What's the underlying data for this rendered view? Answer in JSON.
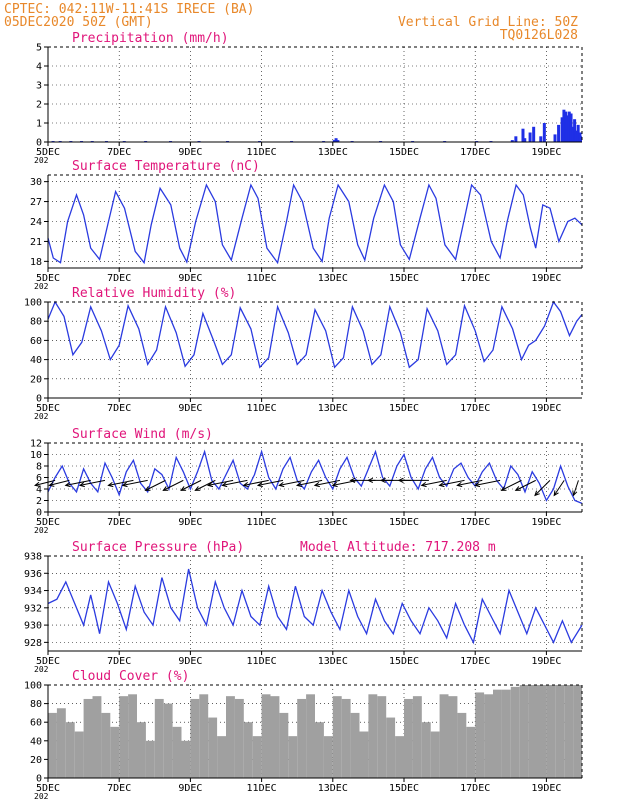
{
  "header": {
    "line1": "CPTEC:  042:11W-11:41S  IRECE (BA)",
    "line2": "05DEC2020 50Z (GMT)",
    "grid_note": "Vertical Grid Line: 50Z",
    "code": "TQ0126L028"
  },
  "x_axis": {
    "range_days": [
      0,
      15
    ],
    "ticks": [
      {
        "day": 0,
        "label": "5DEC"
      },
      {
        "day": 2,
        "label": "7DEC"
      },
      {
        "day": 4,
        "label": "9DEC"
      },
      {
        "day": 6,
        "label": "11DEC"
      },
      {
        "day": 8,
        "label": "13DEC"
      },
      {
        "day": 10,
        "label": "15DEC"
      },
      {
        "day": 12,
        "label": "17DEC"
      },
      {
        "day": 14,
        "label": "19DEC"
      }
    ],
    "year_stub": "202"
  },
  "chart_data": [
    {
      "type": "bar",
      "title": "Precipitation (mm/h)",
      "ylim": [
        0,
        5
      ],
      "yticks": [
        0,
        1,
        2,
        3,
        4,
        5
      ],
      "color": "#1f2fe6",
      "x_days": [
        0.1,
        0.3,
        0.6,
        0.9,
        1.2,
        1.6,
        2.1,
        2.7,
        3.4,
        4.2,
        5.0,
        5.9,
        6.8,
        7.7,
        8.0,
        8.05,
        8.1,
        8.5,
        9.3,
        10.2,
        11.1,
        12.0,
        12.4,
        13.0,
        13.1,
        13.3,
        13.35,
        13.5,
        13.6,
        13.8,
        13.9,
        14.2,
        14.3,
        14.4,
        14.45,
        14.5,
        14.55,
        14.6,
        14.65,
        14.7,
        14.75,
        14.8,
        14.85,
        14.9,
        14.95
      ],
      "values": [
        0.05,
        0.05,
        0.05,
        0.05,
        0.05,
        0.05,
        0.05,
        0.05,
        0.05,
        0.05,
        0.05,
        0.05,
        0.05,
        0.05,
        0.1,
        0.2,
        0.1,
        0.05,
        0.05,
        0.05,
        0.05,
        0.05,
        0.05,
        0.1,
        0.3,
        0.7,
        0.2,
        0.5,
        0.8,
        0.3,
        1.0,
        0.4,
        0.9,
        1.3,
        1.7,
        1.6,
        1.4,
        1.6,
        1.5,
        0.8,
        1.2,
        0.6,
        0.9,
        0.5,
        0.3
      ]
    },
    {
      "type": "line",
      "title": "Surface Temperature (nC)",
      "ylim": [
        17,
        31
      ],
      "yticks": [
        18,
        21,
        24,
        27,
        30
      ],
      "color": "#2b3be0",
      "x_days": [
        0.0,
        0.15,
        0.35,
        0.55,
        0.8,
        1.0,
        1.2,
        1.45,
        1.7,
        1.9,
        2.15,
        2.45,
        2.7,
        2.9,
        3.15,
        3.45,
        3.7,
        3.9,
        4.15,
        4.45,
        4.7,
        4.9,
        5.15,
        5.45,
        5.7,
        5.9,
        6.15,
        6.45,
        6.7,
        6.9,
        7.15,
        7.45,
        7.7,
        7.9,
        8.15,
        8.45,
        8.7,
        8.9,
        9.15,
        9.45,
        9.7,
        9.9,
        10.15,
        10.45,
        10.7,
        10.9,
        11.15,
        11.45,
        11.7,
        11.9,
        12.15,
        12.45,
        12.7,
        12.9,
        13.15,
        13.35,
        13.55,
        13.7,
        13.9,
        14.1,
        14.35,
        14.6,
        14.8,
        15.0
      ],
      "values": [
        21.5,
        18.5,
        17.8,
        24.0,
        28.0,
        25.0,
        20.0,
        18.3,
        24.0,
        28.5,
        26.0,
        19.5,
        17.8,
        23.5,
        29.0,
        26.5,
        20.0,
        17.9,
        24.0,
        29.5,
        27.0,
        20.5,
        18.2,
        24.5,
        29.5,
        27.5,
        20.0,
        17.8,
        24.0,
        29.5,
        27.0,
        20.0,
        18.0,
        24.5,
        29.5,
        27.0,
        20.5,
        18.2,
        24.5,
        29.5,
        27.0,
        20.5,
        18.3,
        24.5,
        29.5,
        27.5,
        20.5,
        18.3,
        24.5,
        29.5,
        28.0,
        21.0,
        18.5,
        24.0,
        29.5,
        28.0,
        23.0,
        20.0,
        26.5,
        26.0,
        21.0,
        24.0,
        24.5,
        23.5
      ]
    },
    {
      "type": "line",
      "title": "Relative Humidity (%)",
      "ylim": [
        0,
        100
      ],
      "yticks": [
        0,
        20,
        40,
        60,
        80,
        100
      ],
      "color": "#2b3be0",
      "x_days": [
        0.0,
        0.2,
        0.45,
        0.7,
        0.95,
        1.2,
        1.5,
        1.75,
        2.0,
        2.25,
        2.55,
        2.8,
        3.05,
        3.3,
        3.6,
        3.85,
        4.1,
        4.35,
        4.65,
        4.9,
        5.15,
        5.4,
        5.7,
        5.95,
        6.2,
        6.45,
        6.75,
        7.0,
        7.25,
        7.5,
        7.8,
        8.05,
        8.3,
        8.55,
        8.85,
        9.1,
        9.35,
        9.6,
        9.9,
        10.15,
        10.4,
        10.65,
        10.95,
        11.2,
        11.45,
        11.7,
        12.0,
        12.25,
        12.5,
        12.75,
        13.05,
        13.3,
        13.5,
        13.7,
        13.95,
        14.2,
        14.4,
        14.65,
        14.85,
        15.0
      ],
      "values": [
        82,
        100,
        85,
        45,
        58,
        95,
        70,
        40,
        55,
        96,
        72,
        35,
        50,
        95,
        68,
        33,
        45,
        88,
        60,
        35,
        45,
        94,
        72,
        32,
        42,
        95,
        68,
        35,
        45,
        92,
        70,
        32,
        42,
        95,
        70,
        35,
        45,
        95,
        68,
        32,
        40,
        93,
        70,
        35,
        45,
        96,
        70,
        38,
        50,
        95,
        72,
        40,
        55,
        60,
        75,
        100,
        90,
        65,
        80,
        87
      ]
    },
    {
      "type": "line",
      "title": "Surface Wind (m/s)",
      "ylim": [
        0,
        12
      ],
      "yticks": [
        0,
        2,
        4,
        6,
        8,
        10,
        12
      ],
      "color": "#2b3be0",
      "x_days": [
        0.0,
        0.2,
        0.4,
        0.6,
        0.8,
        1.0,
        1.2,
        1.4,
        1.6,
        1.8,
        2.0,
        2.2,
        2.4,
        2.6,
        2.8,
        3.0,
        3.2,
        3.4,
        3.6,
        3.8,
        4.0,
        4.2,
        4.4,
        4.6,
        4.8,
        5.0,
        5.2,
        5.4,
        5.6,
        5.8,
        6.0,
        6.2,
        6.4,
        6.6,
        6.8,
        7.0,
        7.2,
        7.4,
        7.6,
        7.8,
        8.0,
        8.2,
        8.4,
        8.6,
        8.8,
        9.0,
        9.2,
        9.4,
        9.6,
        9.8,
        10.0,
        10.2,
        10.4,
        10.6,
        10.8,
        11.0,
        11.2,
        11.4,
        11.6,
        11.8,
        12.0,
        12.2,
        12.4,
        12.6,
        12.8,
        13.0,
        13.2,
        13.4,
        13.6,
        13.8,
        14.0,
        14.2,
        14.4,
        14.6,
        14.8,
        15.0
      ],
      "values": [
        3.5,
        6.0,
        8.0,
        5.0,
        3.5,
        7.5,
        5.0,
        3.5,
        8.5,
        6.0,
        3.0,
        7.0,
        9.0,
        5.0,
        3.5,
        7.5,
        6.5,
        4.0,
        9.5,
        7.0,
        4.0,
        7.0,
        10.5,
        5.5,
        4.0,
        6.5,
        9.0,
        5.0,
        4.0,
        6.5,
        10.5,
        6.0,
        4.0,
        7.5,
        9.5,
        5.5,
        4.0,
        7.0,
        9.0,
        6.0,
        4.0,
        7.5,
        9.5,
        6.0,
        4.5,
        7.5,
        10.5,
        6.0,
        4.5,
        8.0,
        10.0,
        6.0,
        4.0,
        7.5,
        9.5,
        6.0,
        4.5,
        7.5,
        8.5,
        6.0,
        4.5,
        7.0,
        8.5,
        5.5,
        4.0,
        8.0,
        6.5,
        3.5,
        7.0,
        5.0,
        2.0,
        4.0,
        8.0,
        4.5,
        2.0,
        1.5
      ],
      "arrows": {
        "color": "#000000",
        "x_days": [
          0.2,
          0.6,
          1.2,
          1.6,
          2.4,
          2.8,
          3.3,
          3.8,
          4.3,
          4.7,
          5.2,
          5.6,
          6.2,
          6.6,
          7.2,
          7.7,
          8.2,
          8.7,
          9.2,
          9.7,
          10.2,
          10.7,
          11.2,
          11.7,
          12.2,
          12.7,
          13.3,
          13.7,
          14.1,
          14.5,
          14.9
        ],
        "u": [
          -4,
          -4,
          -5,
          -5,
          -5,
          -5,
          -4,
          -4,
          -4,
          -4,
          -5,
          -5,
          -5,
          -5,
          -5,
          -5,
          -5,
          -5,
          -5,
          -5,
          -6,
          -6,
          -5,
          -5,
          -5,
          -5,
          -4,
          -4,
          -3,
          -2,
          -1
        ],
        "v": [
          -1,
          -1,
          -1,
          -1,
          -1,
          -1,
          -2,
          -2,
          -2,
          -2,
          -1,
          -1,
          -1,
          -1,
          -1,
          -1,
          -1,
          -1,
          0,
          0,
          0,
          0,
          -1,
          -1,
          -1,
          -1,
          -2,
          -2,
          -3,
          -3,
          -3
        ]
      }
    },
    {
      "type": "line",
      "title": "Surface Pressure (hPa)",
      "annotation": "Model Altitude: 717.208 m",
      "ylim": [
        927,
        938
      ],
      "yticks": [
        928,
        930,
        932,
        934,
        936,
        938
      ],
      "color": "#2b3be0",
      "x_days": [
        0.0,
        0.25,
        0.5,
        0.75,
        1.0,
        1.2,
        1.45,
        1.7,
        1.95,
        2.2,
        2.45,
        2.7,
        2.95,
        3.2,
        3.45,
        3.7,
        3.95,
        4.2,
        4.45,
        4.7,
        4.95,
        5.2,
        5.45,
        5.7,
        5.95,
        6.2,
        6.45,
        6.7,
        6.95,
        7.2,
        7.45,
        7.7,
        7.95,
        8.2,
        8.45,
        8.7,
        8.95,
        9.2,
        9.45,
        9.7,
        9.95,
        10.2,
        10.45,
        10.7,
        10.95,
        11.2,
        11.45,
        11.7,
        11.95,
        12.2,
        12.45,
        12.7,
        12.95,
        13.2,
        13.45,
        13.7,
        13.95,
        14.2,
        14.45,
        14.7,
        15.0
      ],
      "values": [
        932.5,
        933.0,
        935.0,
        932.5,
        930.0,
        933.5,
        929.0,
        935.0,
        932.5,
        929.5,
        934.5,
        931.5,
        930.0,
        935.5,
        932.0,
        930.5,
        936.5,
        932.0,
        930.0,
        935.0,
        932.0,
        930.0,
        934.0,
        931.0,
        930.0,
        934.5,
        931.0,
        929.5,
        934.5,
        931.0,
        930.0,
        934.0,
        931.5,
        929.5,
        934.0,
        931.0,
        929.0,
        933.0,
        930.5,
        929.0,
        932.5,
        930.5,
        929.0,
        932.0,
        930.5,
        928.5,
        932.5,
        930.0,
        928.0,
        933.0,
        931.0,
        929.0,
        934.0,
        931.5,
        929.0,
        932.0,
        930.0,
        928.0,
        930.5,
        928.0,
        930.0
      ]
    },
    {
      "type": "bar",
      "title": "Cloud Cover (%)",
      "ylim": [
        0,
        100
      ],
      "yticks": [
        0,
        20,
        40,
        60,
        80,
        100
      ],
      "color": "#a0a0a0",
      "x_days": [
        0.0,
        0.25,
        0.5,
        0.75,
        1.0,
        1.25,
        1.5,
        1.75,
        2.0,
        2.25,
        2.5,
        2.75,
        3.0,
        3.25,
        3.5,
        3.75,
        4.0,
        4.25,
        4.5,
        4.75,
        5.0,
        5.25,
        5.5,
        5.75,
        6.0,
        6.25,
        6.5,
        6.75,
        7.0,
        7.25,
        7.5,
        7.75,
        8.0,
        8.25,
        8.5,
        8.75,
        9.0,
        9.25,
        9.5,
        9.75,
        10.0,
        10.25,
        10.5,
        10.75,
        11.0,
        11.25,
        11.5,
        11.75,
        12.0,
        12.25,
        12.5,
        12.75,
        13.0,
        13.25,
        13.5,
        13.75,
        14.0,
        14.25,
        14.5,
        14.75
      ],
      "values": [
        70,
        75,
        60,
        50,
        85,
        88,
        70,
        55,
        88,
        90,
        60,
        40,
        85,
        80,
        55,
        40,
        85,
        90,
        65,
        45,
        88,
        85,
        60,
        45,
        90,
        88,
        70,
        45,
        85,
        90,
        60,
        45,
        88,
        85,
        70,
        50,
        90,
        88,
        65,
        45,
        85,
        88,
        60,
        50,
        90,
        88,
        70,
        55,
        92,
        90,
        95,
        95,
        98,
        100,
        100,
        100,
        100,
        100,
        100,
        100
      ]
    }
  ]
}
